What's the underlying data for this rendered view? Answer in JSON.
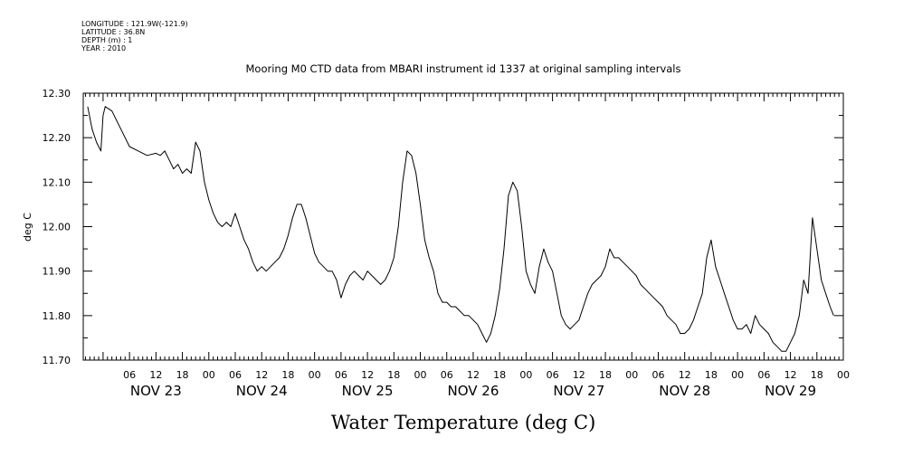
{
  "meta": {
    "longitude": "LONGITUDE : 121.9W(-121.9)",
    "latitude": "LATITUDE : 36.8N",
    "depth": "DEPTH (m) : 1",
    "year": "YEAR : 2010"
  },
  "chart_data": {
    "type": "line",
    "title": "Mooring M0 CTD data from MBARI instrument id 1337 at original sampling intervals",
    "xlabel": "Water Temperature (deg C)",
    "ylabel": "deg C",
    "xlim_hours": [
      0,
      168
    ],
    "ylim": [
      11.7,
      12.3
    ],
    "yticks": [
      "11.70",
      "11.80",
      "11.90",
      "12.00",
      "12.10",
      "12.20",
      "12.30"
    ],
    "xhour_ticks": [
      "06",
      "12",
      "18",
      "00"
    ],
    "day_labels": [
      "NOV 23",
      "NOV 24",
      "NOV 25",
      "NOV 26",
      "NOV 27",
      "NOV 28",
      "NOV 29"
    ],
    "series": [
      {
        "color": "#000000",
        "points": [
          [
            -3.5,
            12.27
          ],
          [
            -2.5,
            12.22
          ],
          [
            -1.5,
            12.19
          ],
          [
            -0.5,
            12.17
          ],
          [
            0.0,
            12.25
          ],
          [
            0.5,
            12.27
          ],
          [
            2,
            12.26
          ],
          [
            4,
            12.22
          ],
          [
            6,
            12.18
          ],
          [
            8,
            12.17
          ],
          [
            10,
            12.16
          ],
          [
            12,
            12.165
          ],
          [
            13,
            12.16
          ],
          [
            14,
            12.17
          ],
          [
            15,
            12.15
          ],
          [
            16,
            12.13
          ],
          [
            17,
            12.14
          ],
          [
            18,
            12.12
          ],
          [
            19,
            12.13
          ],
          [
            20,
            12.12
          ],
          [
            21,
            12.19
          ],
          [
            22,
            12.17
          ],
          [
            23,
            12.1
          ],
          [
            24,
            12.06
          ],
          [
            25,
            12.03
          ],
          [
            26,
            12.01
          ],
          [
            27,
            12.0
          ],
          [
            28,
            12.01
          ],
          [
            29,
            12.0
          ],
          [
            30,
            12.03
          ],
          [
            31,
            12.0
          ],
          [
            32,
            11.97
          ],
          [
            33,
            11.95
          ],
          [
            34,
            11.92
          ],
          [
            35,
            11.9
          ],
          [
            36,
            11.91
          ],
          [
            37,
            11.9
          ],
          [
            38,
            11.91
          ],
          [
            39,
            11.92
          ],
          [
            40,
            11.93
          ],
          [
            41,
            11.95
          ],
          [
            42,
            11.98
          ],
          [
            43,
            12.02
          ],
          [
            44,
            12.05
          ],
          [
            45,
            12.05
          ],
          [
            46,
            12.02
          ],
          [
            47,
            11.98
          ],
          [
            48,
            11.94
          ],
          [
            49,
            11.92
          ],
          [
            50,
            11.91
          ],
          [
            51,
            11.9
          ],
          [
            52,
            11.9
          ],
          [
            53,
            11.88
          ],
          [
            54,
            11.84
          ],
          [
            55,
            11.87
          ],
          [
            56,
            11.89
          ],
          [
            57,
            11.9
          ],
          [
            58,
            11.89
          ],
          [
            59,
            11.88
          ],
          [
            60,
            11.9
          ],
          [
            61,
            11.89
          ],
          [
            62,
            11.88
          ],
          [
            63,
            11.87
          ],
          [
            64,
            11.88
          ],
          [
            65,
            11.9
          ],
          [
            66,
            11.93
          ],
          [
            67,
            12.0
          ],
          [
            68,
            12.1
          ],
          [
            69,
            12.17
          ],
          [
            70,
            12.16
          ],
          [
            71,
            12.12
          ],
          [
            72,
            12.05
          ],
          [
            73,
            11.97
          ],
          [
            74,
            11.93
          ],
          [
            75,
            11.9
          ],
          [
            76,
            11.85
          ],
          [
            77,
            11.83
          ],
          [
            78,
            11.83
          ],
          [
            79,
            11.82
          ],
          [
            80,
            11.82
          ],
          [
            81,
            11.81
          ],
          [
            82,
            11.8
          ],
          [
            83,
            11.8
          ],
          [
            84,
            11.79
          ],
          [
            85,
            11.78
          ],
          [
            86,
            11.76
          ],
          [
            87,
            11.74
          ],
          [
            88,
            11.76
          ],
          [
            89,
            11.8
          ],
          [
            90,
            11.86
          ],
          [
            91,
            11.95
          ],
          [
            92,
            12.07
          ],
          [
            93,
            12.1
          ],
          [
            94,
            12.08
          ],
          [
            95,
            12.0
          ],
          [
            96,
            11.9
          ],
          [
            97,
            11.87
          ],
          [
            98,
            11.85
          ],
          [
            99,
            11.91
          ],
          [
            100,
            11.95
          ],
          [
            101,
            11.92
          ],
          [
            102,
            11.9
          ],
          [
            103,
            11.85
          ],
          [
            104,
            11.8
          ],
          [
            105,
            11.78
          ],
          [
            106,
            11.77
          ],
          [
            107,
            11.78
          ],
          [
            108,
            11.79
          ],
          [
            109,
            11.82
          ],
          [
            110,
            11.85
          ],
          [
            111,
            11.87
          ],
          [
            112,
            11.88
          ],
          [
            113,
            11.89
          ],
          [
            114,
            11.91
          ],
          [
            115,
            11.95
          ],
          [
            116,
            11.93
          ],
          [
            117,
            11.93
          ],
          [
            118,
            11.92
          ],
          [
            119,
            11.91
          ],
          [
            120,
            11.9
          ],
          [
            121,
            11.89
          ],
          [
            122,
            11.87
          ],
          [
            123,
            11.86
          ],
          [
            124,
            11.85
          ],
          [
            125,
            11.84
          ],
          [
            126,
            11.83
          ],
          [
            127,
            11.82
          ],
          [
            128,
            11.8
          ],
          [
            129,
            11.79
          ],
          [
            130,
            11.78
          ],
          [
            131,
            11.76
          ],
          [
            132,
            11.76
          ],
          [
            133,
            11.77
          ],
          [
            134,
            11.79
          ],
          [
            135,
            11.82
          ],
          [
            136,
            11.85
          ],
          [
            137,
            11.93
          ],
          [
            138,
            11.97
          ],
          [
            139,
            11.91
          ],
          [
            140,
            11.88
          ],
          [
            141,
            11.85
          ],
          [
            142,
            11.82
          ],
          [
            143,
            11.79
          ],
          [
            144,
            11.77
          ],
          [
            145,
            11.77
          ],
          [
            146,
            11.78
          ],
          [
            147,
            11.76
          ],
          [
            148,
            11.8
          ],
          [
            149,
            11.78
          ],
          [
            150,
            11.77
          ],
          [
            151,
            11.76
          ],
          [
            152,
            11.74
          ],
          [
            153,
            11.73
          ],
          [
            154,
            11.72
          ],
          [
            155,
            11.72
          ],
          [
            156,
            11.74
          ],
          [
            157,
            11.76
          ],
          [
            158,
            11.8
          ],
          [
            159,
            11.88
          ],
          [
            160,
            11.85
          ],
          [
            161,
            12.02
          ],
          [
            162,
            11.95
          ],
          [
            163,
            11.88
          ],
          [
            164,
            11.85
          ],
          [
            165,
            11.82
          ],
          [
            165.8,
            11.8
          ]
        ]
      }
    ]
  }
}
